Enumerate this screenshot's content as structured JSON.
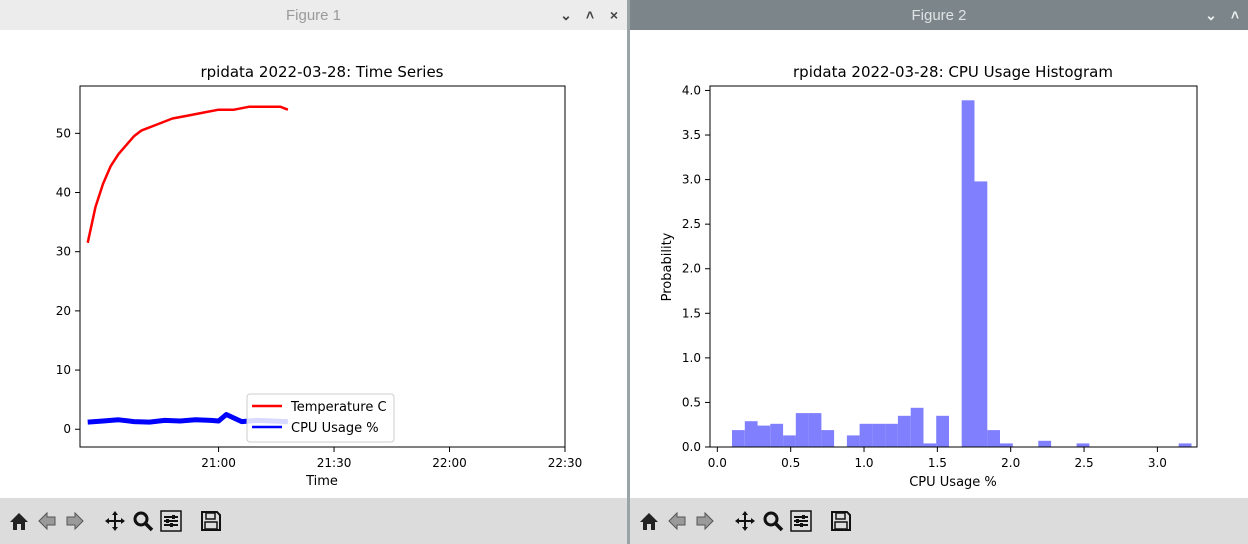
{
  "windows": [
    {
      "title": "Figure 1",
      "controls": {
        "minimize": "⌄",
        "maximize": "˄",
        "close": "×"
      }
    },
    {
      "title": "Figure 2",
      "controls": {
        "minimize": "⌄",
        "maximize": "˄"
      }
    }
  ],
  "toolbar_icons": [
    "home-icon",
    "back-arrow-icon",
    "forward-arrow-icon",
    "pan-icon",
    "zoom-icon",
    "configure-subplots-icon",
    "save-icon"
  ],
  "chart_data": [
    {
      "type": "line",
      "title": "rpidata 2022-03-28: Time Series",
      "xlabel": "Time",
      "ylabel": "",
      "x_ticks": [
        "21:00",
        "21:30",
        "22:00",
        "22:30"
      ],
      "x_range": [
        "20:24",
        "22:30"
      ],
      "y_ticks": [
        "0",
        "10",
        "20",
        "30",
        "40",
        "50"
      ],
      "ylim": [
        -3,
        58
      ],
      "legend_position": "lower-right of data",
      "series": [
        {
          "name": "Temperature C",
          "color": "#ff0000",
          "x": [
            "20:26",
            "20:28",
            "20:30",
            "20:32",
            "20:34",
            "20:36",
            "20:38",
            "20:40",
            "20:44",
            "20:48",
            "20:52",
            "20:56",
            "21:00",
            "21:04",
            "21:08",
            "21:12",
            "21:16",
            "21:18"
          ],
          "values": [
            31.5,
            37.5,
            41.5,
            44.5,
            46.5,
            48,
            49.5,
            50.5,
            51.5,
            52.5,
            53,
            53.5,
            54,
            54,
            54.5,
            54.5,
            54.5,
            54
          ]
        },
        {
          "name": "CPU Usage %",
          "color": "#0000ff",
          "x": [
            "20:26",
            "20:30",
            "20:34",
            "20:38",
            "20:42",
            "20:46",
            "20:50",
            "20:54",
            "20:58",
            "21:00",
            "21:02",
            "21:06",
            "21:10",
            "21:14",
            "21:18"
          ],
          "values": [
            1.2,
            1.4,
            1.6,
            1.3,
            1.2,
            1.5,
            1.4,
            1.6,
            1.5,
            1.4,
            2.5,
            1.3,
            1.5,
            1.4,
            1.3
          ]
        }
      ]
    },
    {
      "type": "bar",
      "title": "rpidata 2022-03-28: CPU Usage Histogram",
      "xlabel": "CPU Usage %",
      "ylabel": "Probability",
      "x_ticks": [
        "0.0",
        "0.5",
        "1.0",
        "1.5",
        "2.0",
        "2.5",
        "3.0"
      ],
      "y_ticks": [
        "0.0",
        "0.5",
        "1.0",
        "1.5",
        "2.0",
        "2.5",
        "3.0",
        "3.5",
        "4.0"
      ],
      "xlim": [
        -0.05,
        3.27
      ],
      "ylim": [
        0,
        4.05
      ],
      "bar_color": "#8080ff",
      "bin_width": 0.087,
      "bins_left": [
        0.1,
        0.187,
        0.274,
        0.361,
        0.448,
        0.535,
        0.622,
        0.709,
        0.796,
        0.883,
        0.97,
        1.057,
        1.144,
        1.231,
        1.318,
        1.405,
        1.492,
        1.579,
        1.666,
        1.753,
        1.84,
        1.927,
        2.014,
        2.101,
        2.188,
        2.275,
        2.362,
        2.449,
        2.536,
        2.623,
        2.71,
        2.797,
        2.884,
        2.971,
        3.058,
        3.145
      ],
      "values": [
        0.19,
        0.29,
        0.24,
        0.26,
        0.13,
        0.38,
        0.38,
        0.19,
        0.0,
        0.13,
        0.26,
        0.26,
        0.26,
        0.35,
        0.44,
        0.04,
        0.35,
        0.0,
        3.89,
        2.98,
        0.19,
        0.04,
        0.0,
        0.0,
        0.07,
        0.0,
        0.0,
        0.04,
        0.0,
        0.0,
        0.0,
        0.0,
        0.0,
        0.0,
        0.0,
        0.04
      ]
    }
  ]
}
